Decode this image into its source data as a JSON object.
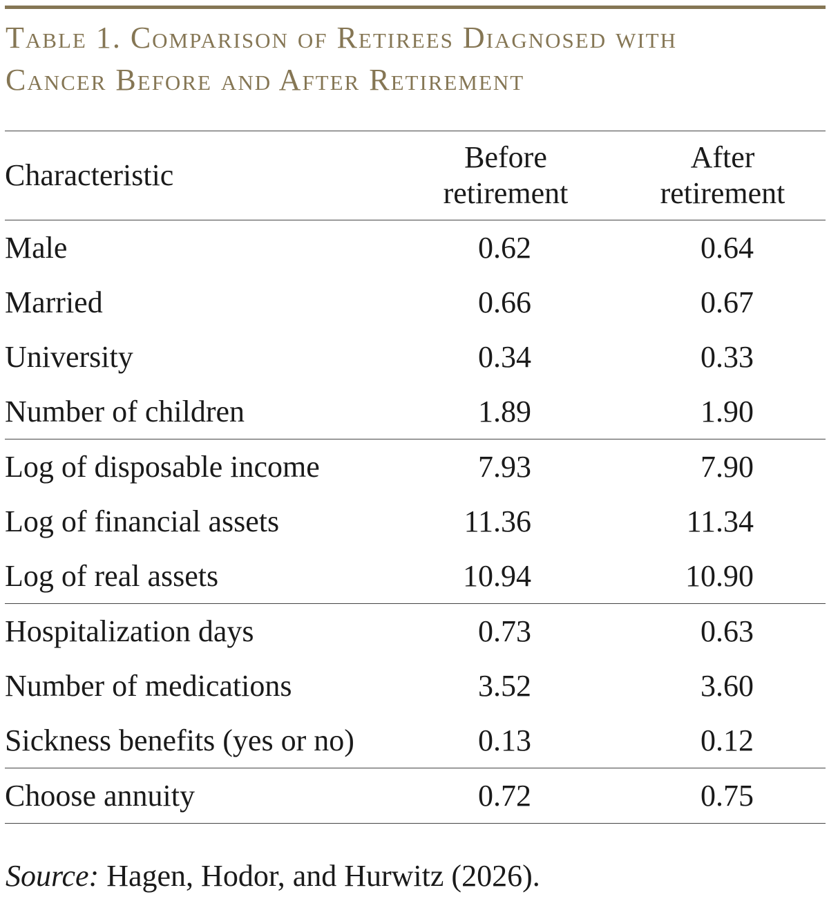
{
  "title_line1": "Table 1. Comparison of Retirees Diagnosed with",
  "title_line2": "Cancer Before and After Retirement",
  "header": {
    "characteristic": "Characteristic",
    "before_line1": "Before",
    "before_line2": "retirement",
    "after_line1": "After",
    "after_line2": "retirement"
  },
  "rows": [
    {
      "label": "Male",
      "before": "0.62",
      "after": "0.64"
    },
    {
      "label": "Married",
      "before": "0.66",
      "after": "0.67"
    },
    {
      "label": "University",
      "before": "0.34",
      "after": "0.33"
    },
    {
      "label": "Number of children",
      "before": "1.89",
      "after": "1.90"
    },
    {
      "label": "Log of disposable income",
      "before": "7.93",
      "after": "7.90"
    },
    {
      "label": "Log of financial assets",
      "before": "11.36",
      "after": "11.34"
    },
    {
      "label": "Log of real assets",
      "before": "10.94",
      "after": "10.90"
    },
    {
      "label": "Hospitalization days",
      "before": "0.73",
      "after": "0.63"
    },
    {
      "label": "Number of medications",
      "before": "3.52",
      "after": "3.60"
    },
    {
      "label": "Sickness benefits (yes or no)",
      "before": "0.13",
      "after": "0.12"
    },
    {
      "label": "Choose annuity",
      "before": "0.72",
      "after": "0.75"
    }
  ],
  "source": {
    "label": "Source:",
    "text": " Hagen, Hodor, and Hurwitz (2026)."
  },
  "colors": {
    "accent": "#857654",
    "text": "#1a1a1a",
    "rule": "#444444"
  }
}
